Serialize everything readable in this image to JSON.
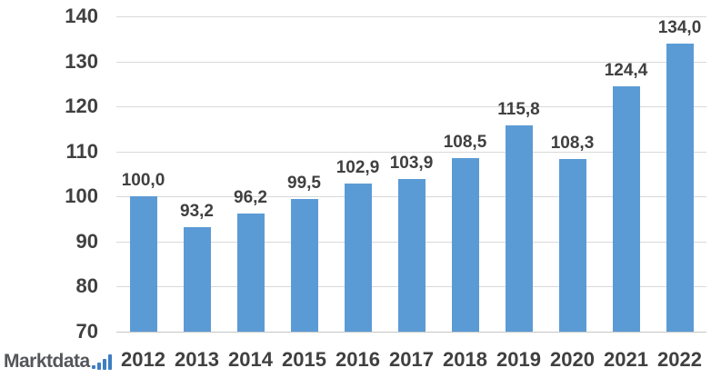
{
  "chart_data": {
    "type": "bar",
    "title": "",
    "xlabel": "",
    "ylabel": "",
    "categories": [
      "2012",
      "2013",
      "2014",
      "2015",
      "2016",
      "2017",
      "2018",
      "2019",
      "2020",
      "2021",
      "2022"
    ],
    "values": [
      100.0,
      93.2,
      96.2,
      99.5,
      102.9,
      103.9,
      108.5,
      115.8,
      108.3,
      124.4,
      134.0
    ],
    "value_labels": [
      "100,0",
      "93,2",
      "96,2",
      "99,5",
      "102,9",
      "103,9",
      "108,5",
      "115,8",
      "108,3",
      "124,4",
      "134,0"
    ],
    "ylim": [
      70,
      140
    ],
    "yticks": [
      70,
      80,
      90,
      100,
      110,
      120,
      130,
      140
    ],
    "grid": true,
    "legend": "none",
    "bar_color": "#5b9bd5",
    "gridline_color": "#d9d9d9",
    "axis_label_color": "#404040"
  },
  "branding": {
    "logo_text": "Marktdata",
    "logo_icon": "bar-chart-icon",
    "logo_text_color": "#54565a",
    "logo_accent_color": "#3e7ec1"
  }
}
